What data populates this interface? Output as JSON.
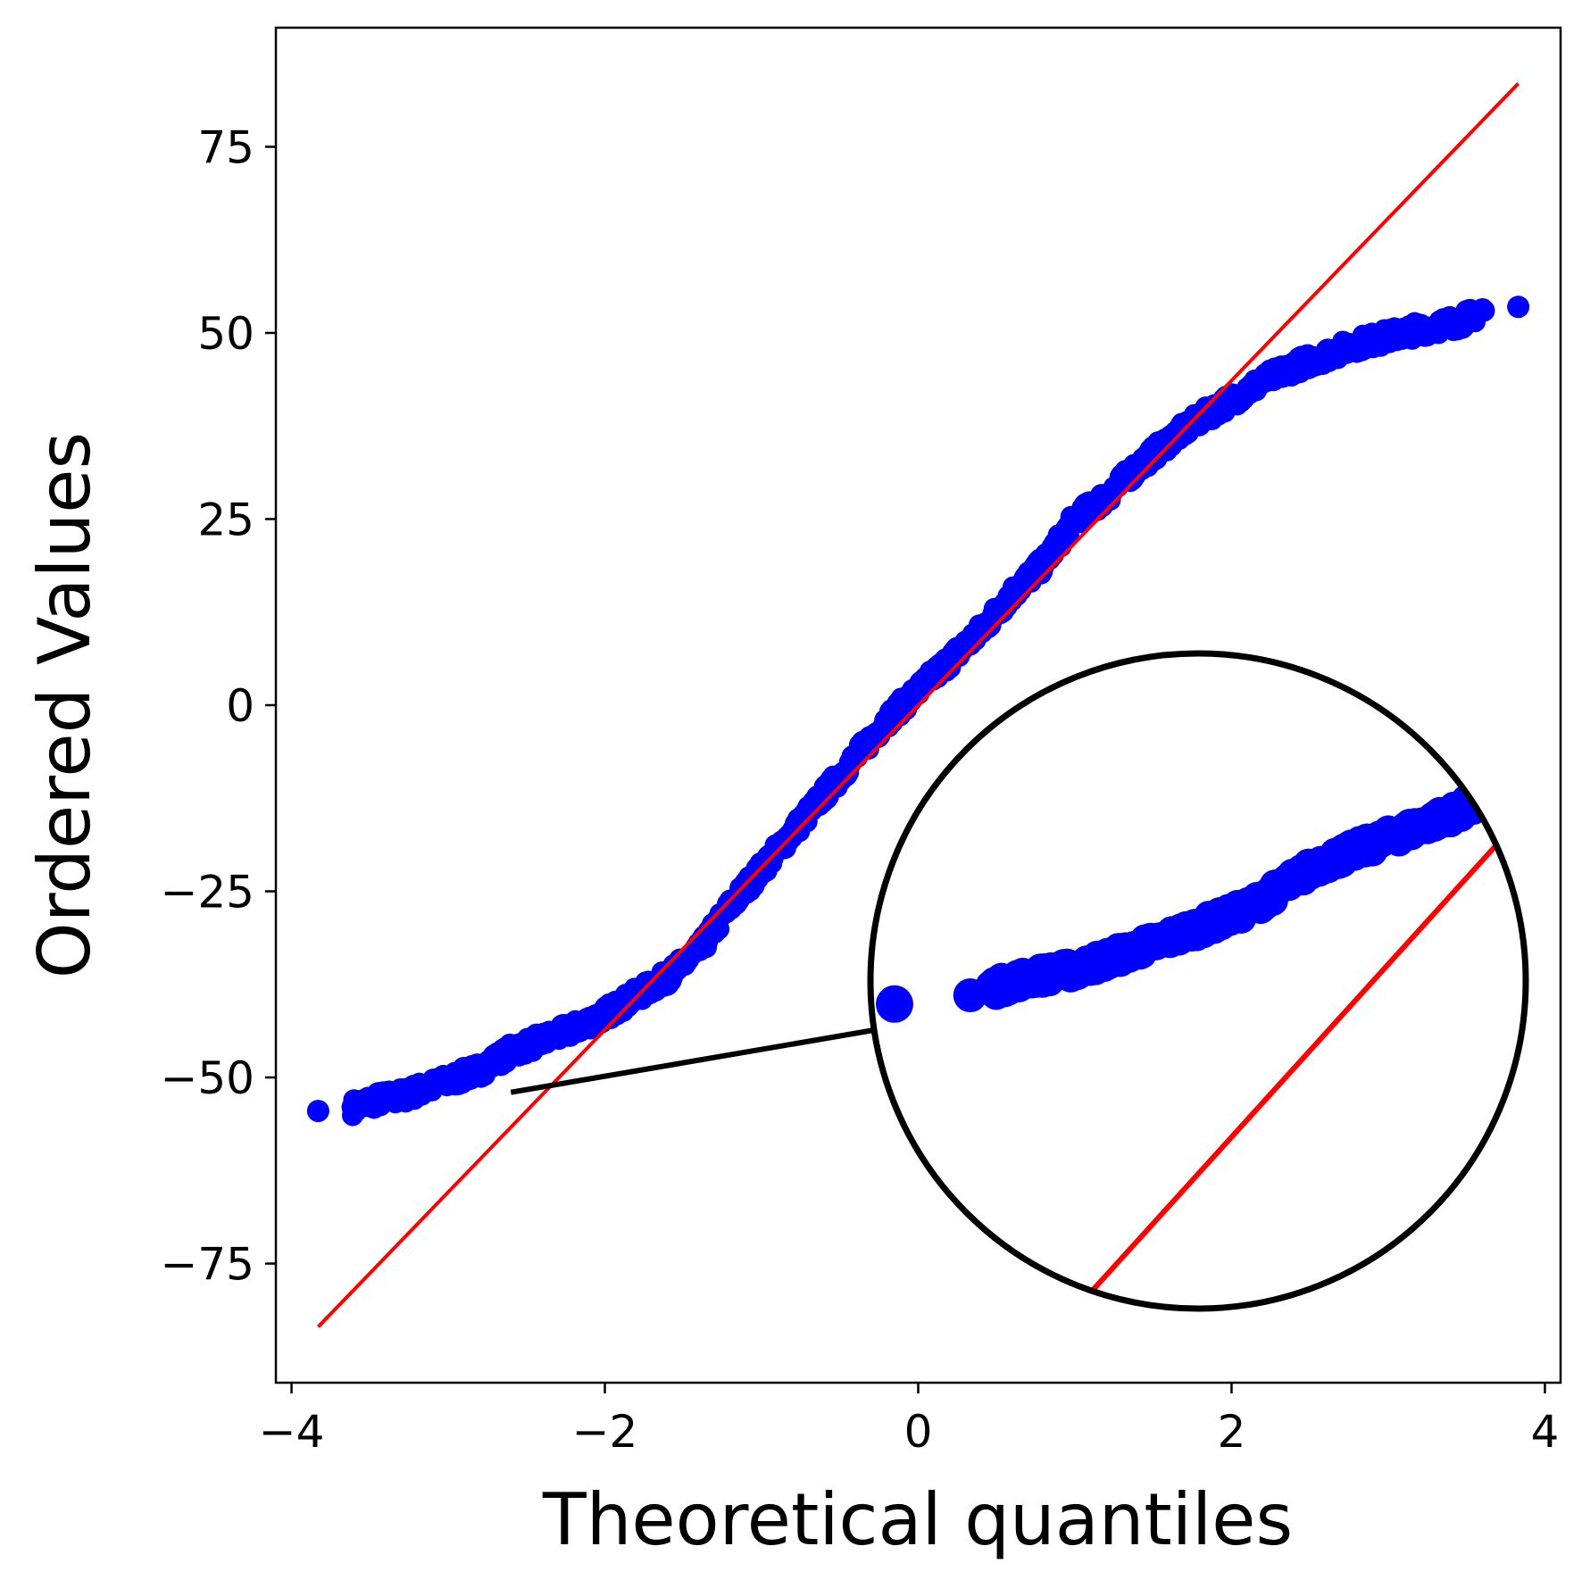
{
  "chart_data": {
    "type": "scatter",
    "title": "",
    "xlabel": "Theoretical quantiles",
    "ylabel": "Ordered Values",
    "xlim": [
      -4.1,
      4.1
    ],
    "ylim": [
      -91,
      91
    ],
    "x_ticks": [
      {
        "value": -4,
        "label": "−4"
      },
      {
        "value": -2,
        "label": "−2"
      },
      {
        "value": 0,
        "label": "0"
      },
      {
        "value": 2,
        "label": "2"
      },
      {
        "value": 4,
        "label": "4"
      }
    ],
    "y_ticks": [
      {
        "value": -75,
        "label": "−75"
      },
      {
        "value": -50,
        "label": "−50"
      },
      {
        "value": -25,
        "label": "−25"
      },
      {
        "value": 0,
        "label": "0"
      },
      {
        "value": 25,
        "label": "25"
      },
      {
        "value": 50,
        "label": "50"
      },
      {
        "value": 75,
        "label": "75"
      }
    ],
    "grid": false,
    "legend": "none",
    "fit_line": {
      "color": "#ff0000",
      "x": [
        -3.83,
        3.83
      ],
      "y": [
        -83.5,
        83.5
      ]
    },
    "sample_color": "#0000ff",
    "sample_curve": {
      "x": [
        -3.83,
        -3.61,
        -3.45,
        -3.3,
        -3.0,
        -2.8,
        -2.6,
        -2.4,
        -2.2,
        -2.0,
        -1.8,
        -1.6,
        -1.4,
        -1.2,
        -1.0,
        -0.8,
        -0.6,
        -0.4,
        -0.2,
        0.0,
        0.2,
        0.4,
        0.6,
        0.8,
        1.0,
        1.2,
        1.4,
        1.6,
        1.8,
        2.0,
        2.2,
        2.4,
        2.6,
        2.8,
        3.0,
        3.2,
        3.45,
        3.61,
        3.83
      ],
      "y": [
        -54.5,
        -54,
        -53,
        -52.5,
        -50.5,
        -49,
        -46.5,
        -45,
        -43.5,
        -41.5,
        -39,
        -36.5,
        -33,
        -27,
        -22,
        -17,
        -12,
        -7,
        -2,
        2,
        6,
        10,
        15,
        19,
        25,
        28,
        32,
        35.5,
        38.5,
        41,
        43.5,
        45.5,
        47,
        48.5,
        49.5,
        50.5,
        51.5,
        53,
        53.5
      ]
    },
    "inset": {
      "shape": "circle",
      "fit_line": {
        "color": "#ff0000"
      },
      "points_label": "zoom of lower tail"
    }
  }
}
